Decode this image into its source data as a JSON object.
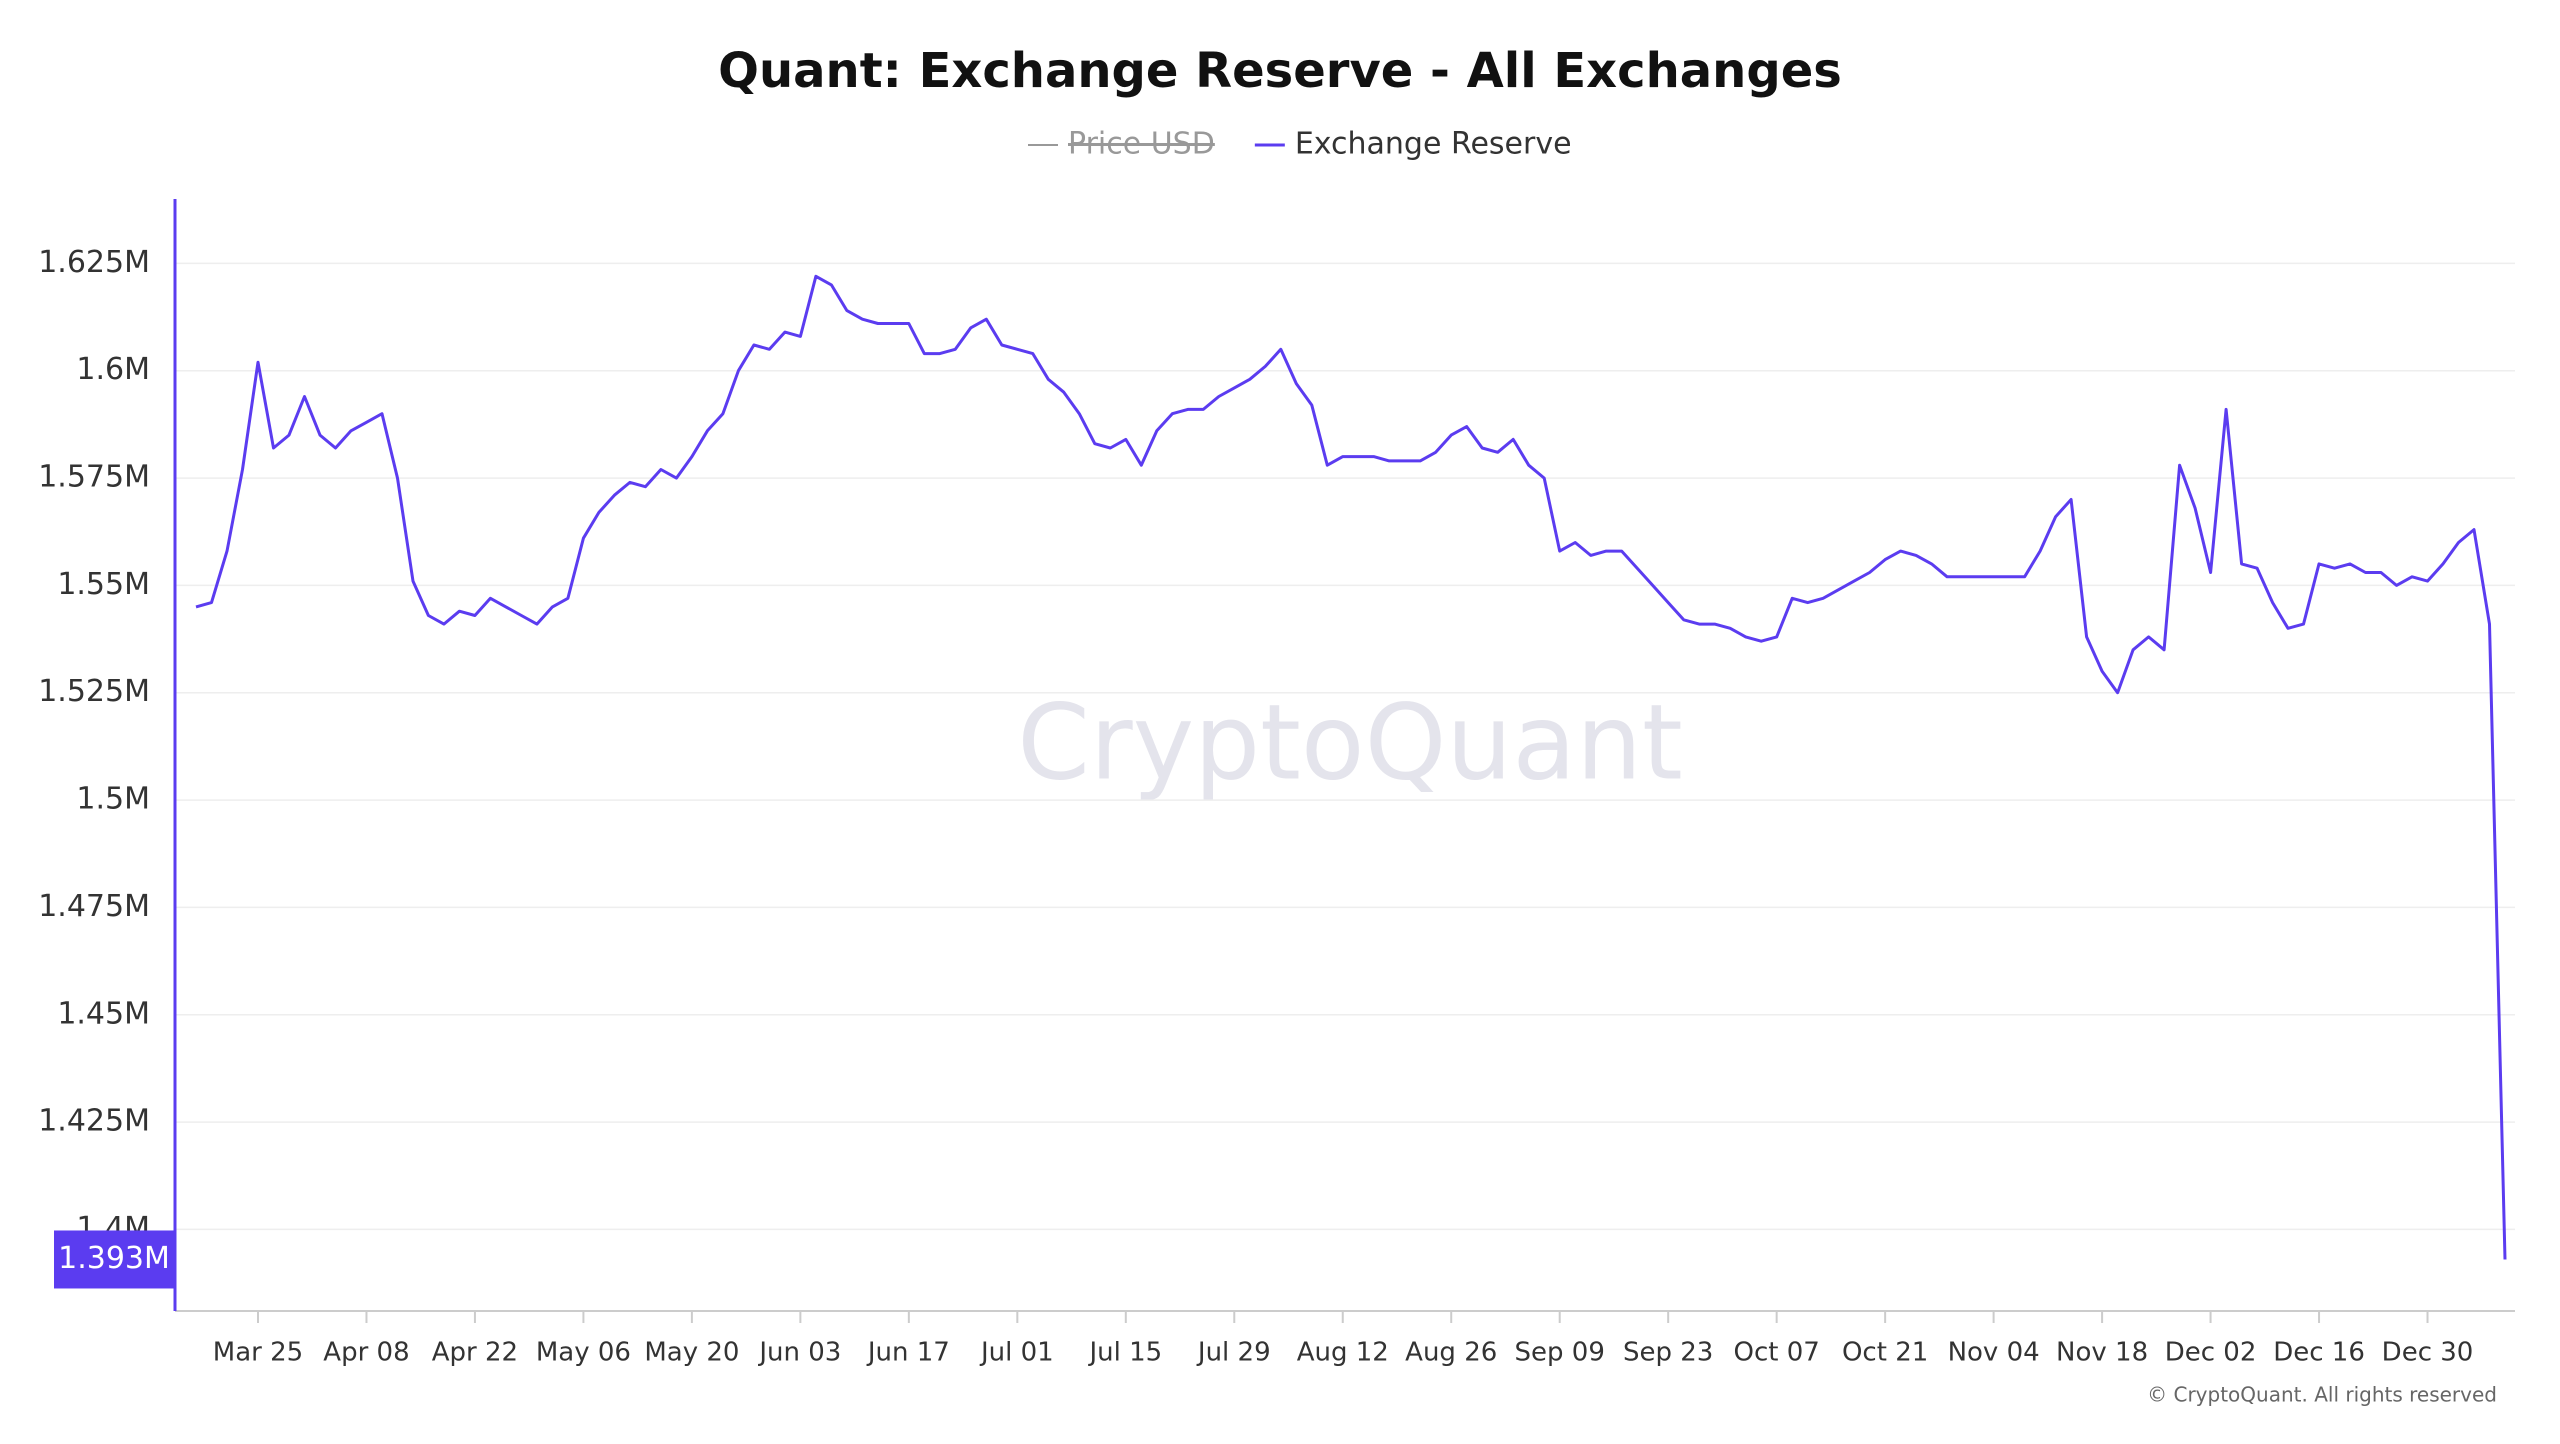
{
  "chart_data": {
    "type": "line",
    "title": "Quant: Exchange Reserve - All Exchanges",
    "categories": [
      null,
      null,
      null,
      null,
      "Mar 25",
      null,
      null,
      null,
      null,
      null,
      null,
      "Apr 08",
      null,
      null,
      null,
      null,
      null,
      null,
      "Apr 22",
      null,
      null,
      null,
      null,
      null,
      null,
      "May 06",
      null,
      null,
      null,
      null,
      null,
      null,
      "May 20",
      null,
      null,
      null,
      null,
      null,
      null,
      "Jun 03",
      null,
      null,
      null,
      null,
      null,
      null,
      "Jun 17",
      null,
      null,
      null,
      null,
      null,
      null,
      "Jul 01",
      null,
      null,
      null,
      null,
      null,
      null,
      "Jul 15",
      null,
      null,
      null,
      null,
      null,
      null,
      "Jul 29",
      null,
      null,
      null,
      null,
      null,
      null,
      "Aug 12",
      null,
      null,
      null,
      null,
      null,
      null,
      "Aug 26",
      null,
      null,
      null,
      null,
      null,
      null,
      "Sep 09",
      null,
      null,
      null,
      null,
      null,
      null,
      "Sep 23",
      null,
      null,
      null,
      null,
      null,
      null,
      "Oct 07",
      null,
      null,
      null,
      null,
      null,
      null,
      "Oct 21",
      null,
      null,
      null,
      null,
      null,
      null,
      "Nov 04",
      null,
      null,
      null,
      null,
      null,
      null,
      "Nov 18",
      null,
      null,
      null,
      null,
      null,
      null,
      "Dec 02",
      null,
      null,
      null,
      null,
      null,
      null,
      "Dec 16",
      null,
      null,
      null,
      null,
      null,
      null,
      "Dec 30",
      null,
      null,
      null,
      null,
      null
    ],
    "series": [
      {
        "name": "Exchange Reserve",
        "color": "#5b3cf0",
        "values": [
          1545000,
          1546000,
          1558000,
          1577000,
          1602000,
          1582000,
          1585000,
          1594000,
          1585000,
          1582000,
          1586000,
          1588000,
          1590000,
          1575000,
          1551000,
          1543000,
          1541000,
          1544000,
          1543000,
          1547000,
          1545000,
          1543000,
          1541000,
          1545000,
          1547000,
          1561000,
          1567000,
          1571000,
          1574000,
          1573000,
          1577000,
          1575000,
          1580000,
          1586000,
          1590000,
          1600000,
          1606000,
          1605000,
          1609000,
          1608000,
          1622000,
          1620000,
          1614000,
          1612000,
          1611000,
          1611000,
          1611000,
          1604000,
          1604000,
          1605000,
          1610000,
          1612000,
          1606000,
          1605000,
          1604000,
          1598000,
          1595000,
          1590000,
          1583000,
          1582000,
          1584000,
          1578000,
          1586000,
          1590000,
          1591000,
          1591000,
          1594000,
          1596000,
          1598000,
          1601000,
          1605000,
          1597000,
          1592000,
          1578000,
          1580000,
          1580000,
          1580000,
          1579000,
          1579000,
          1579000,
          1581000,
          1585000,
          1587000,
          1582000,
          1581000,
          1584000,
          1578000,
          1575000,
          1558000,
          1560000,
          1557000,
          1558000,
          1558000,
          1554000,
          1550000,
          1546000,
          1542000,
          1541000,
          1541000,
          1540000,
          1538000,
          1537000,
          1538000,
          1547000,
          1546000,
          1547000,
          1549000,
          1551000,
          1553000,
          1556000,
          1558000,
          1557000,
          1555000,
          1552000,
          1552000,
          1552000,
          1552000,
          1552000,
          1552000,
          1558000,
          1566000,
          1570000,
          1538000,
          1530000,
          1525000,
          1535000,
          1538000,
          1535000,
          1578000,
          1568000,
          1553000,
          1591000,
          1555000,
          1554000,
          1546000,
          1540000,
          1541000,
          1555000,
          1554000,
          1555000,
          1553000,
          1553000,
          1550000,
          1552000,
          1551000,
          1555000,
          1560000,
          1563000,
          1541000,
          1393000
        ]
      }
    ],
    "current_label": "1.393M",
    "legend_hidden": [
      {
        "name": "Price USD",
        "color": "#999999"
      }
    ],
    "ylim": [
      1381000,
      1640000
    ],
    "yticks": [
      {
        "value": 1400000,
        "label": "1.4M"
      },
      {
        "value": 1425000,
        "label": "1.425M"
      },
      {
        "value": 1450000,
        "label": "1.45M"
      },
      {
        "value": 1475000,
        "label": "1.475M"
      },
      {
        "value": 1500000,
        "label": "1.5M"
      },
      {
        "value": 1525000,
        "label": "1.525M"
      },
      {
        "value": 1550000,
        "label": "1.55M"
      },
      {
        "value": 1575000,
        "label": "1.575M"
      },
      {
        "value": 1600000,
        "label": "1.6M"
      },
      {
        "value": 1625000,
        "label": "1.625M"
      }
    ],
    "grid": true,
    "watermark": "CryptoQuant",
    "footer": "© CryptoQuant. All rights reserved"
  }
}
